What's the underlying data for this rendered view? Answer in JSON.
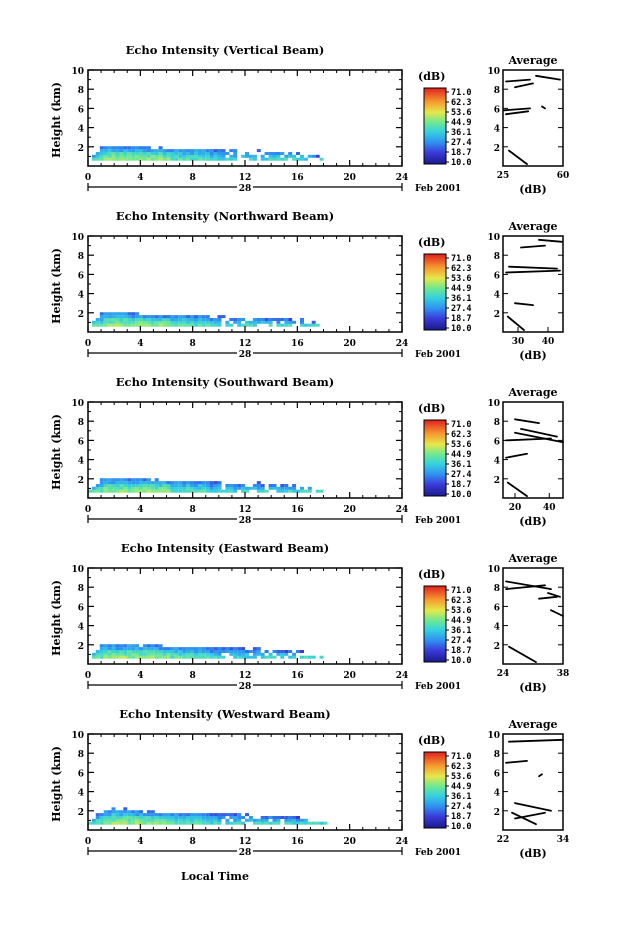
{
  "figure": {
    "date_label": "Feb 2001",
    "day_label": "28",
    "xlabel": "Local Time",
    "ylabel": "Height (km)",
    "colorbar_unit": "(dB)",
    "colorbar_ticks": [
      "71.0",
      "62.3",
      "53.6",
      "44.9",
      "36.1",
      "27.4",
      "18.7",
      "10.0"
    ],
    "avg_title": "Average",
    "avg_xlabel": "(dB)"
  },
  "chart_data": [
    {
      "type": "heatmap",
      "title": "Echo Intensity (Vertical Beam)",
      "xlabel": "Local Time",
      "ylabel": "Height (km)",
      "xlim": [
        0,
        24
      ],
      "ylim": [
        0,
        10
      ],
      "xticks": [
        0,
        4,
        8,
        12,
        16,
        20,
        24
      ],
      "yticks": [
        2,
        4,
        6,
        8,
        10
      ],
      "color_scale_db": [
        10.0,
        71.0
      ],
      "echo_top_km": [
        [
          0,
          0.6
        ],
        [
          0.5,
          1.2
        ],
        [
          1,
          1.9
        ],
        [
          2,
          2.0
        ],
        [
          4,
          1.8
        ],
        [
          8,
          1.6
        ],
        [
          12,
          1.5
        ],
        [
          14,
          1.4
        ],
        [
          16,
          1.3
        ],
        [
          17.5,
          0.9
        ],
        [
          18,
          0.6
        ]
      ],
      "echo_end_hour": 17.8,
      "average": {
        "title": "Average",
        "xlabel": "(dB)",
        "xlim": [
          25,
          60
        ],
        "xticks": [
          25,
          60
        ],
        "yticks": [
          2,
          4,
          6,
          8,
          10
        ]
      }
    },
    {
      "type": "heatmap",
      "title": "Echo Intensity (Northward Beam)",
      "xlabel": "Local Time",
      "ylabel": "Height (km)",
      "xlim": [
        0,
        24
      ],
      "ylim": [
        0,
        10
      ],
      "xticks": [
        0,
        4,
        8,
        12,
        16,
        20,
        24
      ],
      "yticks": [
        2,
        4,
        6,
        8,
        10
      ],
      "color_scale_db": [
        10.0,
        71.0
      ],
      "echo_top_km": [
        [
          0,
          0.6
        ],
        [
          0.5,
          1.3
        ],
        [
          1,
          1.9
        ],
        [
          2,
          2.0
        ],
        [
          4,
          1.7
        ],
        [
          8,
          1.5
        ],
        [
          12,
          1.4
        ],
        [
          14,
          1.3
        ],
        [
          16,
          1.2
        ],
        [
          17.5,
          0.9
        ],
        [
          18,
          0.6
        ]
      ],
      "echo_end_hour": 17.7,
      "average": {
        "title": "Average",
        "xlabel": "(dB)",
        "xlim": [
          25,
          45
        ],
        "xticks": [
          30,
          40
        ],
        "yticks": [
          2,
          4,
          6,
          8,
          10
        ]
      }
    },
    {
      "type": "heatmap",
      "title": "Echo Intensity (Southward Beam)",
      "xlabel": "Local Time",
      "ylabel": "Height (km)",
      "xlim": [
        0,
        24
      ],
      "ylim": [
        0,
        10
      ],
      "xticks": [
        0,
        4,
        8,
        12,
        16,
        20,
        24
      ],
      "yticks": [
        2,
        4,
        6,
        8,
        10
      ],
      "color_scale_db": [
        10.0,
        71.0
      ],
      "echo_top_km": [
        [
          0,
          0.6
        ],
        [
          0.5,
          1.2
        ],
        [
          1,
          1.9
        ],
        [
          2,
          2.0
        ],
        [
          4,
          1.8
        ],
        [
          8,
          1.6
        ],
        [
          12,
          1.4
        ],
        [
          14,
          1.4
        ],
        [
          16,
          1.2
        ],
        [
          17.5,
          0.8
        ],
        [
          18.2,
          0.6
        ]
      ],
      "echo_end_hour": 18.3,
      "average": {
        "title": "Average",
        "xlabel": "(dB)",
        "xlim": [
          13,
          48
        ],
        "xticks": [
          20,
          40
        ],
        "yticks": [
          2,
          4,
          6,
          8,
          10
        ]
      }
    },
    {
      "type": "heatmap",
      "title": "Echo Intensity (Eastward Beam)",
      "xlabel": "Local Time",
      "ylabel": "Height (km)",
      "xlim": [
        0,
        24
      ],
      "ylim": [
        0,
        10
      ],
      "xticks": [
        0,
        4,
        8,
        12,
        16,
        20,
        24
      ],
      "yticks": [
        2,
        4,
        6,
        8,
        10
      ],
      "color_scale_db": [
        10.0,
        71.0
      ],
      "echo_top_km": [
        [
          0,
          0.6
        ],
        [
          0.5,
          1.3
        ],
        [
          1,
          1.9
        ],
        [
          2,
          2.0
        ],
        [
          4,
          1.8
        ],
        [
          8,
          1.6
        ],
        [
          12,
          1.5
        ],
        [
          14,
          1.3
        ],
        [
          16,
          1.2
        ],
        [
          17.5,
          0.8
        ],
        [
          18.2,
          0.6
        ]
      ],
      "echo_end_hour": 18.3,
      "average": {
        "title": "Average",
        "xlabel": "(dB)",
        "xlim": [
          24,
          38
        ],
        "xticks": [
          24,
          38
        ],
        "yticks": [
          2,
          4,
          6,
          8,
          10
        ]
      }
    },
    {
      "type": "heatmap",
      "title": "Echo Intensity (Westward Beam)",
      "xlabel": "Local Time",
      "ylabel": "Height (km)",
      "xlim": [
        0,
        24
      ],
      "ylim": [
        0,
        10
      ],
      "xticks": [
        0,
        4,
        8,
        12,
        16,
        20,
        24
      ],
      "yticks": [
        2,
        4,
        6,
        8,
        10
      ],
      "color_scale_db": [
        10.0,
        71.0
      ],
      "echo_top_km": [
        [
          0,
          0.6
        ],
        [
          0.5,
          1.3
        ],
        [
          1,
          1.9
        ],
        [
          2,
          2.1
        ],
        [
          4,
          1.8
        ],
        [
          8,
          1.6
        ],
        [
          12,
          1.5
        ],
        [
          14,
          1.3
        ],
        [
          16,
          1.2
        ],
        [
          17.5,
          0.8
        ],
        [
          18.2,
          0.6
        ]
      ],
      "echo_end_hour": 18.3,
      "average": {
        "title": "Average",
        "xlabel": "(dB)",
        "xlim": [
          22,
          34
        ],
        "xticks": [
          22,
          34
        ],
        "yticks": [
          2,
          4,
          6,
          8,
          10
        ]
      }
    }
  ]
}
